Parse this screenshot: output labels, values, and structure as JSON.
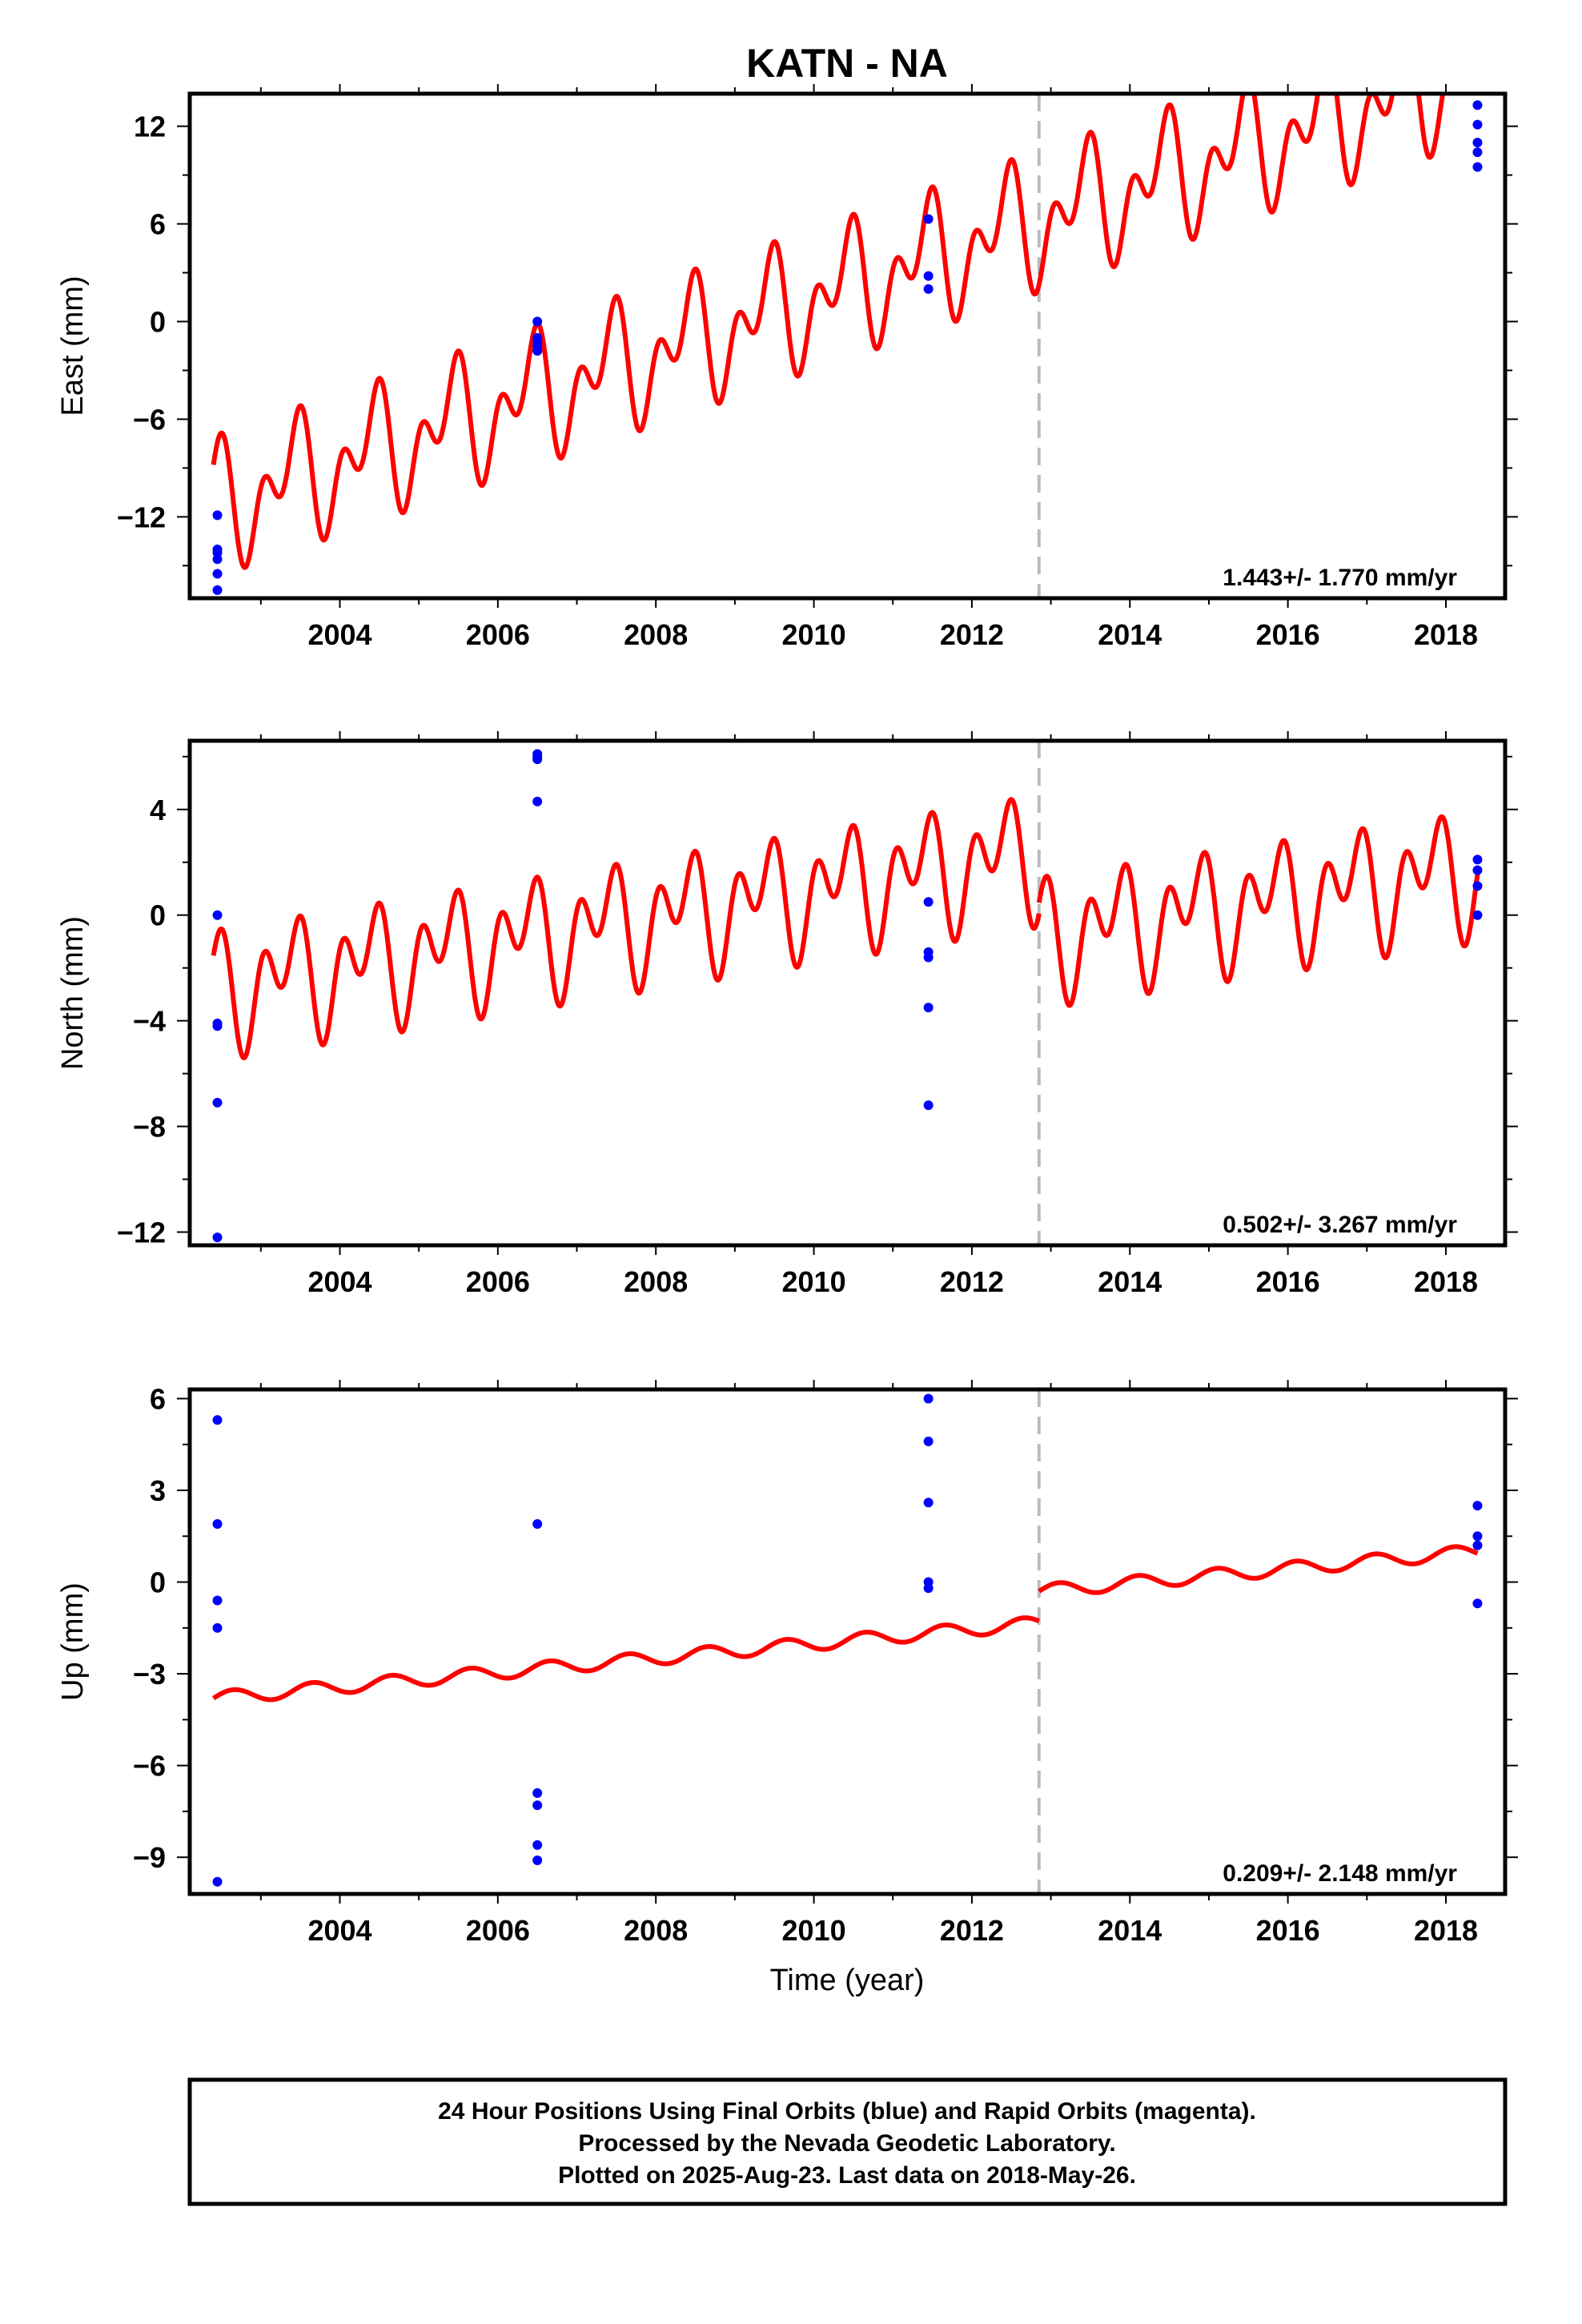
{
  "figure": {
    "title": "KATN - NA",
    "xlabel": "Time (year)",
    "footer": [
      "24 Hour Positions Using Final Orbits (blue) and Rapid Orbits (magenta).",
      "Processed by the Nevada Geodetic Laboratory.",
      "Plotted on 2025-Aug-23. Last data on 2018-May-26."
    ],
    "colors": {
      "data": "#0000ff",
      "model": "#ff0000",
      "event_line": "#bbbbbb",
      "frame": "#000000"
    }
  },
  "chart_data": [
    {
      "type": "scatter",
      "panel": "east",
      "ylabel": "East (mm)",
      "xlim": [
        2002.1,
        2018.75
      ],
      "ylim": [
        -17,
        14
      ],
      "x_ticks": [
        2004,
        2006,
        2008,
        2010,
        2012,
        2014,
        2016,
        2018
      ],
      "y_ticks": [
        -12,
        -6,
        0,
        6,
        12
      ],
      "grid": false,
      "event_line_x": 2012.85,
      "rate_text": "1.443+/- 1.770 mm/yr",
      "data_points": {
        "x": [
          2002.45,
          2002.45,
          2002.45,
          2002.45,
          2002.45,
          2002.45,
          2006.5,
          2006.5,
          2006.5,
          2006.5,
          2006.5,
          2011.45,
          2011.45,
          2011.45,
          2018.4,
          2018.4,
          2018.4,
          2018.4,
          2018.4
        ],
        "y": [
          -11.9,
          -14.2,
          -14.6,
          -15.5,
          -16.5,
          -14.0,
          0.0,
          -1.0,
          -1.2,
          -1.5,
          -1.8,
          6.3,
          2.8,
          2.0,
          13.3,
          12.1,
          10.4,
          9.5,
          11.0
        ]
      },
      "model": {
        "segments": [
          {
            "x0": 2002.4,
            "x1": 2012.85,
            "t_ref": 2002.4,
            "offset": -11.4,
            "rate": 1.68,
            "annual_amp": 2.6,
            "annual_phase_deg": 90,
            "semiannual_amp": 2.4,
            "semiannual_phase_deg": 0
          },
          {
            "x0": 2012.85,
            "x1": 2018.4,
            "t_ref": 2002.4,
            "offset": -11.4,
            "rate": 1.68,
            "annual_amp": 2.6,
            "annual_phase_deg": 90,
            "semiannual_amp": 2.4,
            "semiannual_phase_deg": 0
          }
        ]
      }
    },
    {
      "type": "scatter",
      "panel": "north",
      "ylabel": "North (mm)",
      "xlim": [
        2002.1,
        2018.75
      ],
      "ylim": [
        -12.5,
        6.6
      ],
      "x_ticks": [
        2004,
        2006,
        2008,
        2010,
        2012,
        2014,
        2016,
        2018
      ],
      "y_ticks": [
        -12,
        -8,
        -4,
        0,
        4
      ],
      "grid": false,
      "event_line_x": 2012.85,
      "rate_text": "0.502+/- 3.267 mm/yr",
      "data_points": {
        "x": [
          2002.45,
          2002.45,
          2002.45,
          2002.45,
          2002.45,
          2006.5,
          2006.5,
          2006.5,
          2006.5,
          2011.45,
          2011.45,
          2011.45,
          2011.45,
          2011.45,
          2018.4,
          2018.4,
          2018.4,
          2018.4
        ],
        "y": [
          0.0,
          -4.1,
          -4.2,
          -7.1,
          -12.2,
          6.1,
          6.0,
          5.9,
          4.3,
          0.5,
          -1.4,
          -1.6,
          -3.5,
          -7.2,
          2.1,
          1.7,
          1.1,
          0.0
        ]
      },
      "model": {
        "segments": [
          {
            "x0": 2002.4,
            "x1": 2012.85,
            "t_ref": 2002.4,
            "offset": -2.8,
            "rate": 0.49,
            "annual_amp": 1.35,
            "annual_phase_deg": 110,
            "semiannual_amp": 1.55,
            "semiannual_phase_deg": 0
          },
          {
            "x0": 2012.85,
            "x1": 2018.4,
            "t_ref": 2012.85,
            "offset": -0.8,
            "rate": 0.45,
            "annual_amp": 1.35,
            "annual_phase_deg": 110,
            "semiannual_amp": 1.55,
            "semiannual_phase_deg": 0
          }
        ]
      }
    },
    {
      "type": "scatter",
      "panel": "up",
      "ylabel": "Up (mm)",
      "xlim": [
        2002.1,
        2018.75
      ],
      "ylim": [
        -10.2,
        6.3
      ],
      "x_ticks": [
        2004,
        2006,
        2008,
        2010,
        2012,
        2014,
        2016,
        2018
      ],
      "y_ticks": [
        -9,
        -6,
        -3,
        0,
        3,
        6
      ],
      "grid": false,
      "event_line_x": 2012.85,
      "rate_text": "0.209+/- 2.148 mm/yr",
      "data_points": {
        "x": [
          2002.45,
          2002.45,
          2002.45,
          2002.45,
          2002.45,
          2006.5,
          2006.5,
          2006.5,
          2006.5,
          2006.5,
          2011.45,
          2011.45,
          2011.45,
          2011.45,
          2011.45,
          2018.4,
          2018.4,
          2018.4,
          2018.4
        ],
        "y": [
          5.3,
          1.9,
          -0.6,
          -1.5,
          -9.8,
          1.9,
          -6.9,
          -7.3,
          -8.6,
          -9.1,
          6.0,
          4.6,
          2.6,
          0.0,
          -0.2,
          2.5,
          1.5,
          1.2,
          -0.7
        ]
      },
      "model": {
        "segments": [
          {
            "x0": 2002.4,
            "x1": 2012.85,
            "t_ref": 2002.4,
            "offset": -3.8,
            "rate": 0.235,
            "annual_amp": 0.22,
            "annual_phase_deg": 0,
            "semiannual_amp": 0.0,
            "semiannual_phase_deg": 0
          },
          {
            "x0": 2012.85,
            "x1": 2018.4,
            "t_ref": 2012.85,
            "offset": -0.3,
            "rate": 0.235,
            "annual_amp": 0.22,
            "annual_phase_deg": 0,
            "semiannual_amp": 0.0,
            "semiannual_phase_deg": 0
          }
        ]
      }
    }
  ]
}
